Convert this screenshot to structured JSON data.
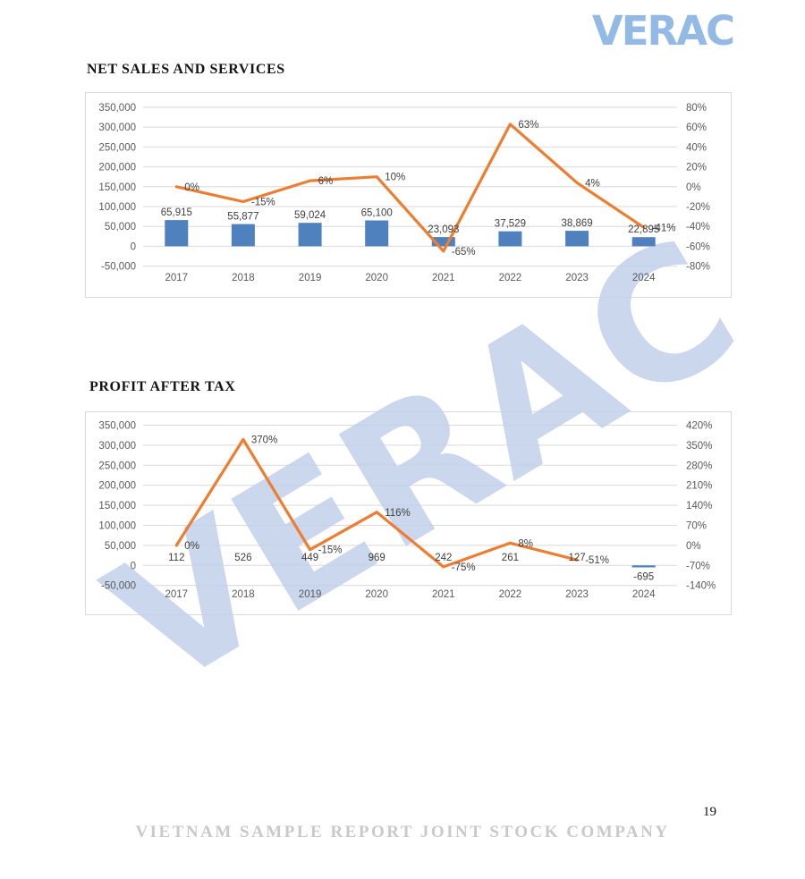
{
  "page": {
    "logo": "VERAC",
    "watermark": "VERAC",
    "page_number": "19",
    "footer": "VIETNAM SAMPLE REPORT JOINT STOCK COMPANY"
  },
  "colors": {
    "bar": "#4E81BD",
    "line": "#ED7D31",
    "grid": "#D9D9D9",
    "border": "#D9D9D9",
    "axis_text": "#595959",
    "label_text": "#3F3F3F",
    "logo": "#93B9E5",
    "watermark": "#BFCFEA"
  },
  "chart_data": [
    {
      "type": "bar",
      "title": "NET SALES AND SERVICES",
      "categories": [
        "2017",
        "2018",
        "2019",
        "2020",
        "2021",
        "2022",
        "2023",
        "2024"
      ],
      "series": [
        {
          "name": "net-sales-bars",
          "kind": "bar",
          "axis": "left",
          "values": [
            65915,
            55877,
            59024,
            65100,
            23093,
            37529,
            38869,
            22895
          ],
          "labels": [
            "65,915",
            "55,877",
            "59,024",
            "65,100",
            "23,093",
            "37,529",
            "38,869",
            "22,895"
          ]
        },
        {
          "name": "growth-rate-line",
          "kind": "line",
          "axis": "right",
          "values": [
            0,
            -15,
            6,
            10,
            -65,
            63,
            4,
            -41
          ],
          "labels": [
            "0%",
            "-15%",
            "6%",
            "10%",
            "-65%",
            "63%",
            "4%",
            "-41%"
          ]
        }
      ],
      "left_axis": {
        "min": -50000,
        "max": 350000,
        "ticks": [
          "350,000",
          "300,000",
          "250,000",
          "200,000",
          "150,000",
          "100,000",
          "50,000",
          "0",
          "-50,000"
        ]
      },
      "right_axis": {
        "min": -80,
        "max": 80,
        "ticks": [
          "80%",
          "60%",
          "40%",
          "20%",
          "0%",
          "-20%",
          "-40%",
          "-60%",
          "-80%"
        ]
      },
      "grid": true,
      "legend": "none"
    },
    {
      "type": "bar",
      "title": "PROFIT AFTER TAX",
      "categories": [
        "2017",
        "2018",
        "2019",
        "2020",
        "2021",
        "2022",
        "2023",
        "2024"
      ],
      "series": [
        {
          "name": "profit-bars",
          "kind": "bar",
          "axis": "left",
          "values": [
            112,
            526,
            449,
            969,
            242,
            261,
            127,
            -695
          ],
          "labels": [
            "112",
            "526",
            "449",
            "969",
            "242",
            "261",
            "127",
            "-695"
          ]
        },
        {
          "name": "growth-rate-line",
          "kind": "line",
          "axis": "right",
          "values": [
            0,
            370,
            -15,
            116,
            -75,
            8,
            -51,
            null
          ],
          "labels": [
            "0%",
            "370%",
            "-15%",
            "116%",
            "-75%",
            "8%",
            "-51%",
            null
          ]
        }
      ],
      "left_axis": {
        "min": -50000,
        "max": 350000,
        "ticks": [
          "350,000",
          "300,000",
          "250,000",
          "200,000",
          "150,000",
          "100,000",
          "50,000",
          "0",
          "-50,000"
        ]
      },
      "right_axis": {
        "min": -140,
        "max": 420,
        "ticks": [
          "420%",
          "350%",
          "280%",
          "210%",
          "140%",
          "70%",
          "0%",
          "-70%",
          "-140%"
        ]
      },
      "grid": true,
      "legend": "none"
    }
  ]
}
